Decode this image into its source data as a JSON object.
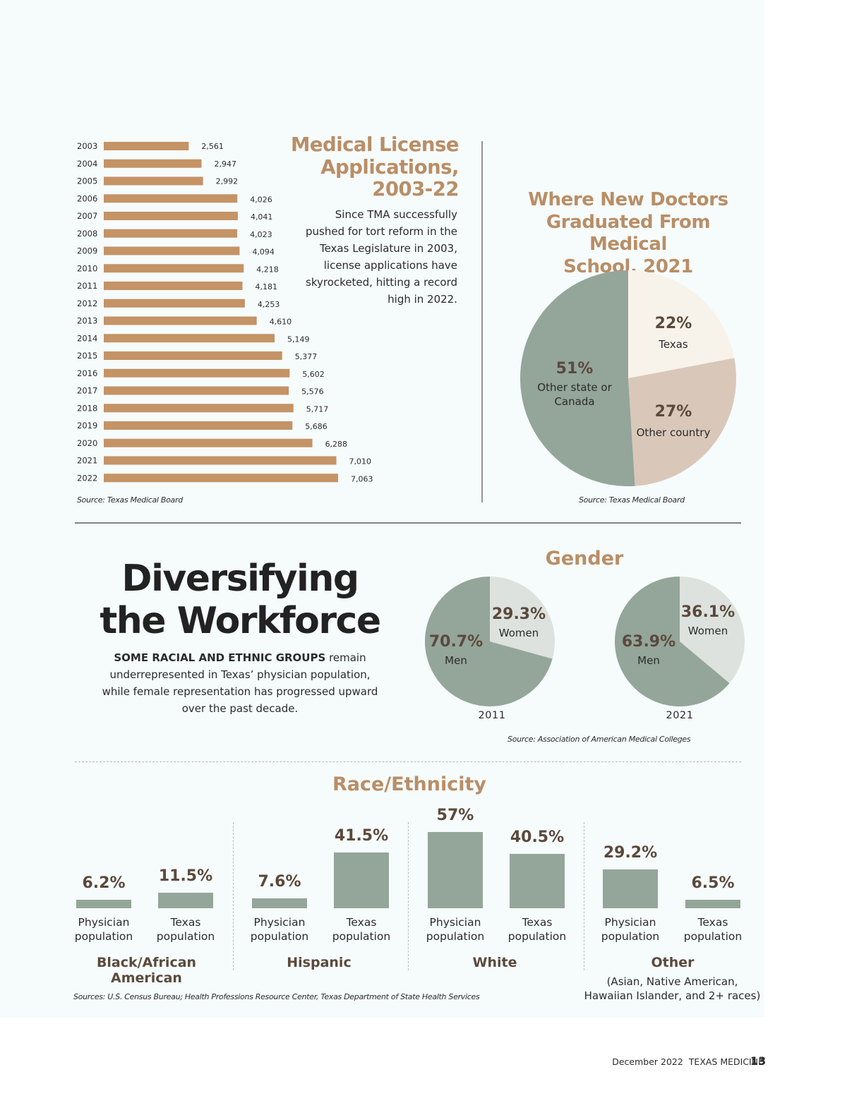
{
  "colors": {
    "bar_brown": "#c49366",
    "title_tan": "#b98e66",
    "value_brown": "#5a4a3c",
    "sage": "#94a59a",
    "light_grey": "#dde2de",
    "cream": "#f7f3ea",
    "beige": "#d9c8b9"
  },
  "license": {
    "title_lines": [
      "Medical License",
      "Applications,",
      "2003-22"
    ],
    "blurb": "Since TMA successfully pushed for tort reform in the Texas Legislature in 2003, license applications have skyrocketed, hitting a record high in 2022.",
    "source": "Source: Texas Medical Board"
  },
  "graduates": {
    "title_lines": [
      "Where New Doctors",
      "Graduated From Medical",
      "School, 2021"
    ],
    "source": "Source: Texas Medical Board"
  },
  "workforce": {
    "title_lines": [
      "Diversifying",
      "the Workforce"
    ],
    "intro_bold": "SOME RACIAL AND ETHNIC GROUPS",
    "intro_rest": " remain underrepresented in Texas’ physician population, while female representation has progressed upward over the past decade."
  },
  "gender": {
    "title": "Gender",
    "source": "Source: Association of American Medical Colleges"
  },
  "race": {
    "title": "Race/Ethnicity",
    "source": "Sources: U.S. Census Bureau; Health Professions Resource Center, Texas Department of State Health Services",
    "other_note_lines": [
      "(Asian, Native American,",
      "Hawaiian Islander, and 2+ races)"
    ]
  },
  "footer": {
    "issue": "December 2022",
    "magazine": "TEXAS MEDICINE",
    "page": "13"
  },
  "chart_data": [
    {
      "type": "bar",
      "orientation": "horizontal",
      "title": "Medical License Applications, 2003-22",
      "categories": [
        "2003",
        "2004",
        "2005",
        "2006",
        "2007",
        "2008",
        "2009",
        "2010",
        "2011",
        "2012",
        "2013",
        "2014",
        "2015",
        "2016",
        "2017",
        "2018",
        "2019",
        "2020",
        "2021",
        "2022"
      ],
      "values": [
        2561,
        2947,
        2992,
        4026,
        4041,
        4023,
        4094,
        4218,
        4181,
        4253,
        4610,
        5149,
        5377,
        5602,
        5576,
        5717,
        5686,
        6288,
        7010,
        7063
      ],
      "labels": [
        "2,561",
        "2,947",
        "2,992",
        "4,026",
        "4,041",
        "4,023",
        "4,094",
        "4,218",
        "4,181",
        "4,253",
        "4,610",
        "5,149",
        "5,377",
        "5,602",
        "5,576",
        "5,717",
        "5,686",
        "6,288",
        "7,010",
        "7,063"
      ],
      "xlim": [
        0,
        7063
      ],
      "grid": false,
      "source": "Source: Texas Medical Board"
    },
    {
      "type": "pie",
      "title": "Where New Doctors Graduated From Medical School, 2021",
      "slices": [
        {
          "label": "Texas",
          "value": 22,
          "pct": "22%",
          "color": "#f7f3ea"
        },
        {
          "label": "Other country",
          "value": 27,
          "pct": "27%",
          "color": "#d9c8b9"
        },
        {
          "label": "Other state or Canada",
          "value": 51,
          "pct": "51%",
          "color": "#94a59a"
        }
      ]
    },
    {
      "type": "pie",
      "title": "Gender 2011",
      "year": "2011",
      "slices": [
        {
          "label": "Women",
          "value": 29.3,
          "pct": "29.3%",
          "color": "#dde2de"
        },
        {
          "label": "Men",
          "value": 70.7,
          "pct": "70.7%",
          "color": "#94a59a"
        }
      ]
    },
    {
      "type": "pie",
      "title": "Gender 2021",
      "year": "2021",
      "slices": [
        {
          "label": "Women",
          "value": 36.1,
          "pct": "36.1%",
          "color": "#dde2de"
        },
        {
          "label": "Men",
          "value": 63.9,
          "pct": "63.9%",
          "color": "#94a59a"
        }
      ]
    },
    {
      "type": "bar",
      "title": "Race/Ethnicity",
      "groups": [
        {
          "name": "Black/African American",
          "bars": [
            {
              "label": "Physician population",
              "value": 6.2,
              "pct": "6.2%"
            },
            {
              "label": "Texas population",
              "value": 11.5,
              "pct": "11.5%"
            }
          ]
        },
        {
          "name": "Hispanic",
          "bars": [
            {
              "label": "Physician population",
              "value": 7.6,
              "pct": "7.6%"
            },
            {
              "label": "Texas population",
              "value": 41.5,
              "pct": "41.5%"
            }
          ]
        },
        {
          "name": "White",
          "bars": [
            {
              "label": "Physician population",
              "value": 57,
              "pct": "57%"
            },
            {
              "label": "Texas population",
              "value": 40.5,
              "pct": "40.5%"
            }
          ]
        },
        {
          "name": "Other",
          "bars": [
            {
              "label": "Physician population",
              "value": 29.2,
              "pct": "29.2%"
            },
            {
              "label": "Texas population",
              "value": 6.5,
              "pct": "6.5%"
            }
          ]
        }
      ],
      "cap_lines": {
        "physician": [
          "Physician",
          "population"
        ],
        "texas": [
          "Texas",
          "population"
        ]
      },
      "ylim": [
        0,
        57
      ]
    }
  ]
}
